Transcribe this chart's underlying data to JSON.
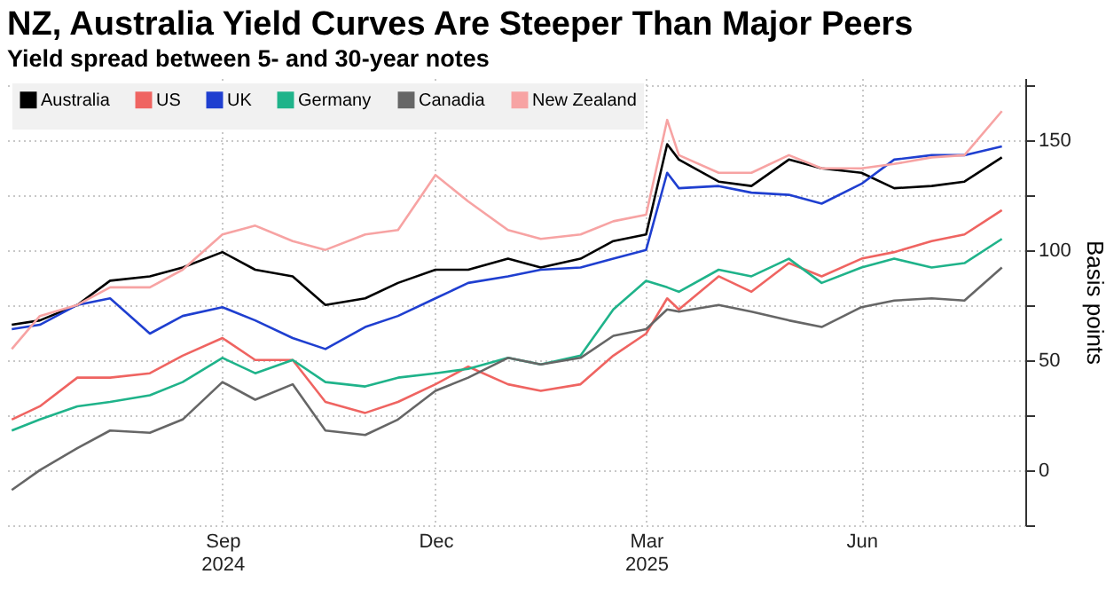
{
  "chart_data": {
    "type": "line",
    "title": "NZ, Australia Yield Curves Are Steeper Than Major Peers",
    "subtitle": "Yield spread between 5- and 30-year notes",
    "ylabel": "Basis points",
    "x": [
      "2024-06-03",
      "2024-06-15",
      "2024-07-01",
      "2024-07-15",
      "2024-08-01",
      "2024-08-15",
      "2024-09-01",
      "2024-09-15",
      "2024-10-01",
      "2024-10-15",
      "2024-11-01",
      "2024-11-15",
      "2024-12-01",
      "2024-12-15",
      "2025-01-01",
      "2025-01-15",
      "2025-02-01",
      "2025-02-15",
      "2025-03-01",
      "2025-03-10",
      "2025-03-15",
      "2025-04-01",
      "2025-04-15",
      "2025-05-01",
      "2025-05-15",
      "2025-06-01",
      "2025-06-15",
      "2025-07-01",
      "2025-07-15",
      "2025-07-31"
    ],
    "series": [
      {
        "name": "Australia",
        "color": "#000000",
        "values": [
          66,
          68,
          75,
          86,
          88,
          92,
          99,
          91,
          88,
          75,
          78,
          85,
          91,
          91,
          96,
          92,
          96,
          104,
          107,
          148,
          141,
          131,
          129,
          141,
          137,
          135,
          128,
          129,
          131,
          142
        ]
      },
      {
        "name": "US",
        "color": "#ef6461",
        "values": [
          23,
          29,
          42,
          42,
          44,
          52,
          60,
          50,
          50,
          31,
          26,
          31,
          39,
          47,
          39,
          36,
          39,
          52,
          62,
          78,
          73,
          88,
          81,
          94,
          88,
          96,
          99,
          104,
          107,
          118
        ]
      },
      {
        "name": "UK",
        "color": "#1f3fd0",
        "values": [
          64,
          66,
          75,
          78,
          62,
          70,
          74,
          68,
          60,
          55,
          65,
          70,
          78,
          85,
          88,
          91,
          92,
          96,
          100,
          135,
          128,
          129,
          126,
          125,
          121,
          130,
          141,
          143,
          143,
          147
        ]
      },
      {
        "name": "Germany",
        "color": "#1fb38a",
        "values": [
          18,
          23,
          29,
          31,
          34,
          40,
          51,
          44,
          50,
          40,
          38,
          42,
          44,
          46,
          51,
          48,
          52,
          73,
          86,
          83,
          81,
          91,
          88,
          96,
          85,
          92,
          96,
          92,
          94,
          105
        ]
      },
      {
        "name": "Canadia",
        "color": "#666666",
        "values": [
          -9,
          0,
          10,
          18,
          17,
          23,
          40,
          32,
          39,
          18,
          16,
          23,
          36,
          42,
          51,
          48,
          51,
          61,
          64,
          73,
          72,
          75,
          72,
          68,
          65,
          74,
          77,
          78,
          77,
          92
        ]
      },
      {
        "name": "New Zealand",
        "color": "#f7a3a3",
        "values": [
          55,
          70,
          75,
          83,
          83,
          91,
          107,
          111,
          104,
          100,
          107,
          109,
          134,
          122,
          109,
          105,
          107,
          113,
          116,
          159,
          143,
          135,
          135,
          143,
          137,
          137,
          139,
          142,
          143,
          163
        ]
      }
    ],
    "xlim": [
      "2024-06-01",
      "2025-08-10"
    ],
    "xticks": [
      {
        "value": "2024-09-01",
        "label": "Sep 2024"
      },
      {
        "value": "2024-12-01",
        "label": "Dec"
      },
      {
        "value": "2025-03-01",
        "label": "Mar 2025"
      },
      {
        "value": "2025-06-01",
        "label": "Jun"
      }
    ],
    "ylim": [
      -25,
      178
    ],
    "yticks": [
      {
        "value": -25,
        "label": null
      },
      0,
      {
        "value": 25,
        "label": null
      },
      50,
      {
        "value": 75,
        "label": null
      },
      100,
      {
        "value": 125,
        "label": null
      },
      150,
      {
        "value": 175,
        "label": null
      }
    ],
    "grid": true,
    "legend": "top left",
    "line_style": "solid",
    "marker": "none"
  }
}
